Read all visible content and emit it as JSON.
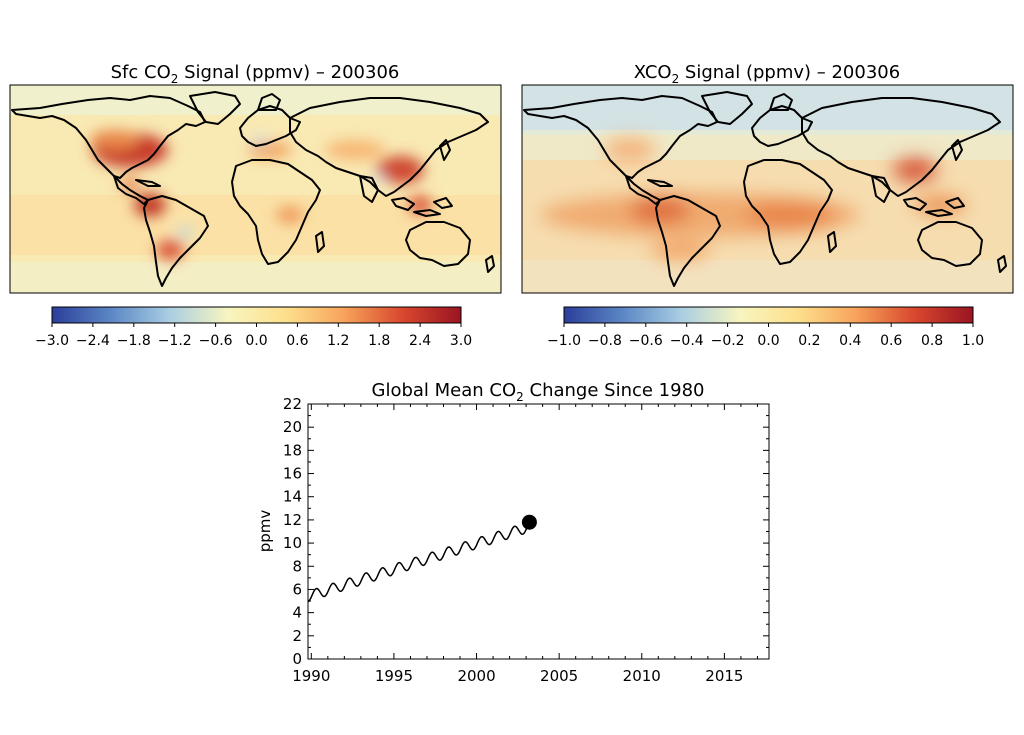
{
  "panels": [
    {
      "title_prefix": "Sfc CO",
      "title_sub": "2",
      "title_suffix": " Signal (ppmv) – 200306",
      "colorbar_ticks": [
        "−3.0",
        "−2.4",
        "−1.8",
        "−1.2",
        "−0.6",
        "0.0",
        "0.6",
        "1.2",
        "1.8",
        "2.4",
        "3.0"
      ],
      "colorbar_range": [
        -3.0,
        3.0
      ]
    },
    {
      "title_prefix": "XCO",
      "title_sub": "2",
      "title_suffix": " Signal (ppmv) – 200306",
      "colorbar_ticks": [
        "−1.0",
        "−0.8",
        "−0.6",
        "−0.4",
        "−0.2",
        "0.0",
        "0.2",
        "0.4",
        "0.6",
        "0.8",
        "1.0"
      ],
      "colorbar_range": [
        -1.0,
        1.0
      ]
    }
  ],
  "colors": {
    "scale": [
      "#2c3e9a",
      "#5b86c4",
      "#a9cde2",
      "#f7f5c0",
      "#fde08c",
      "#f7a35a",
      "#d8472e",
      "#9a1422"
    ],
    "map_sfc_ocean": "#f9e9b3",
    "map_xco2_ocean": "#f6ddb0",
    "land_outline": "#000000",
    "line": "#000000",
    "marker": "#000000"
  },
  "chart_data": {
    "type": "line",
    "title_prefix": "Global Mean CO",
    "title_sub": "2",
    "title_suffix": " Change Since 1980",
    "xlabel": "",
    "ylabel": "ppmv",
    "xlim": [
      1989.8,
      2017.7
    ],
    "ylim": [
      0,
      22
    ],
    "x_ticks": [
      "1990",
      "1995",
      "2000",
      "2005",
      "2010",
      "2015"
    ],
    "y_ticks": [
      "0",
      "2",
      "4",
      "6",
      "8",
      "10",
      "12",
      "14",
      "16",
      "18",
      "20",
      "22"
    ],
    "series": [
      {
        "start": 1989.8,
        "end": 2003.2,
        "start_value": 5.4,
        "end_value": 11.4,
        "seasonal_amplitude": 0.45,
        "marker_x": 2003.2,
        "marker_y": 11.8
      }
    ]
  }
}
